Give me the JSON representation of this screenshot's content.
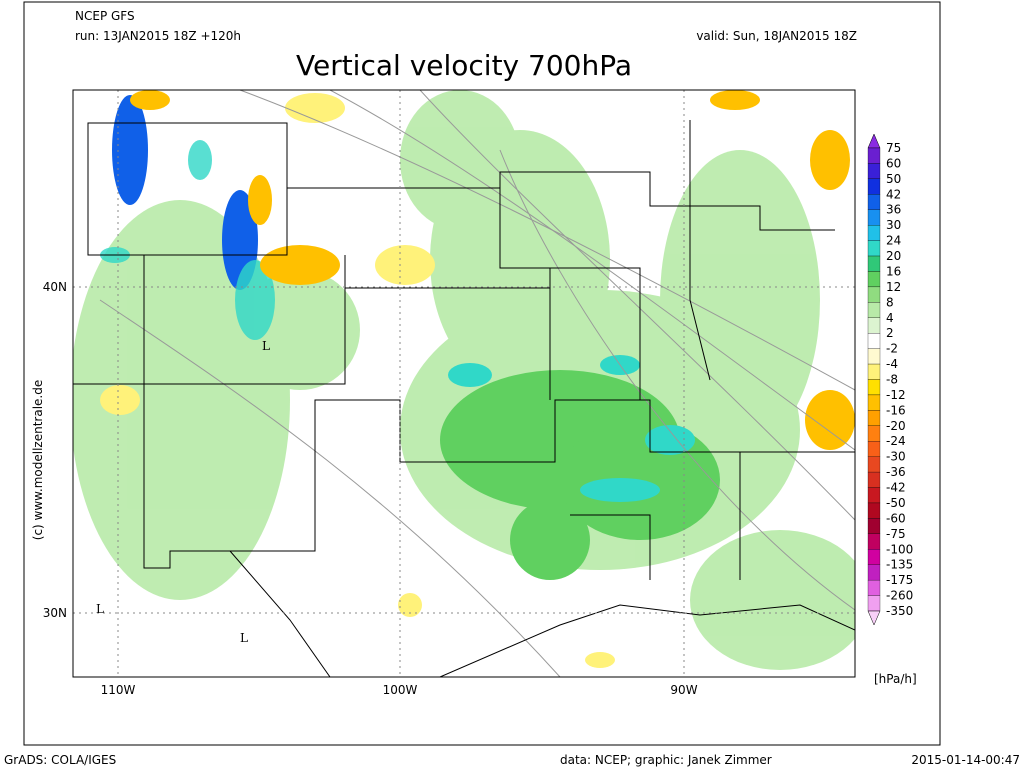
{
  "header": {
    "model": "NCEP GFS",
    "run": "run: 13JAN2015 18Z +120h",
    "valid": "valid: Sun, 18JAN2015 18Z",
    "title": "Vertical velocity 700hPa"
  },
  "axes": {
    "lon_labels": [
      "110W",
      "100W",
      "90W"
    ],
    "lat_labels": [
      "40N",
      "30N"
    ]
  },
  "map_labels": [
    "L",
    "L",
    "L"
  ],
  "side_text": "(c) www.modellzentrale.de",
  "colorbar": {
    "labels": [
      "75",
      "60",
      "50",
      "42",
      "36",
      "30",
      "24",
      "20",
      "16",
      "12",
      "8",
      "4",
      "2",
      "-2",
      "-4",
      "-8",
      "-12",
      "-16",
      "-20",
      "-24",
      "-30",
      "-36",
      "-42",
      "-50",
      "-60",
      "-75",
      "-100",
      "-135",
      "-175",
      "-260",
      "-350"
    ],
    "colors": [
      "#8a2be2",
      "#6a1fd0",
      "#3a20d8",
      "#1030e0",
      "#1060e8",
      "#1890f0",
      "#20c0e8",
      "#30d8c8",
      "#30c878",
      "#60d060",
      "#90dc80",
      "#b8eaa8",
      "#dcf4d0",
      "#ffffff",
      "#fffad0",
      "#fff27a",
      "#ffe000",
      "#ffc000",
      "#ffa000",
      "#ff8010",
      "#f86018",
      "#e84820",
      "#d83020",
      "#c81820",
      "#b00820",
      "#a00030",
      "#c00060",
      "#d000a0",
      "#c020c0",
      "#e060e0",
      "#f0a0f0",
      "#f8d0f8"
    ],
    "unit": "[hPa/h]"
  },
  "footer": {
    "left": "GrADS: COLA/IGES",
    "center": "data: NCEP; graphic: Janek Zimmer",
    "right": "2015-01-14-00:47"
  }
}
